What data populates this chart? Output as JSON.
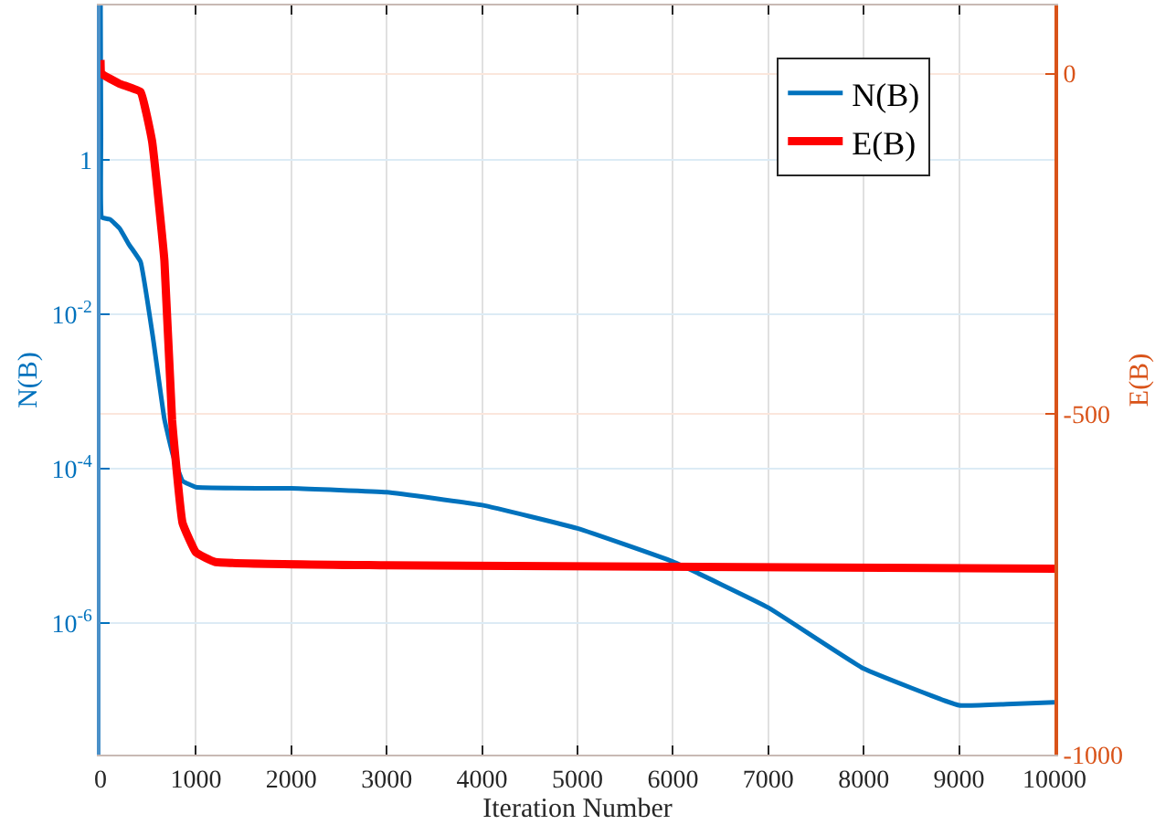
{
  "chart_data": {
    "type": "line",
    "xlabel": "Iteration Number",
    "ylabel": "N(B)",
    "y2label": "E(B)",
    "xlim": [
      0,
      10000
    ],
    "xticks": [
      0,
      1000,
      2000,
      3000,
      4000,
      5000,
      6000,
      7000,
      8000,
      9000,
      10000
    ],
    "ylim": [
      2e-08,
      100
    ],
    "yticks": [
      {
        "value": 1e-06,
        "label": "10$^{-6}$"
      },
      {
        "value": 0.0001,
        "label": "10$^{-4}$"
      },
      {
        "value": 0.01,
        "label": "10$^{-2}$"
      },
      1
    ],
    "y2lim": [
      -1000,
      100
    ],
    "y2ticks": [
      -1000,
      -500,
      0
    ],
    "log": "y",
    "grid": true,
    "legend": "top right",
    "series": [
      {
        "name": "N(B)",
        "color": "#0072bd",
        "x": [
          0,
          5,
          15,
          100,
          200,
          300,
          420,
          550,
          670,
          760,
          860,
          1000,
          2000,
          3000,
          4000,
          5000,
          6000,
          7000,
          8000,
          9000,
          9500,
          10000
        ],
        "values": [
          100,
          2,
          0.18,
          0.17,
          0.13,
          0.08,
          0.048,
          0.005,
          0.00044,
          0.00015,
          7e-05,
          5.8e-05,
          5.6e-05,
          5e-05,
          3.4e-05,
          1.7e-05,
          6.3e-06,
          1.6e-06,
          2.6e-07,
          8.7e-08,
          9e-08,
          9.5e-08
        ]
      },
      {
        "name": "E(B)",
        "color": "#ff0000",
        "axis": "y2",
        "x": [
          0,
          10,
          200,
          420,
          540,
          670,
          750,
          860,
          1000,
          1200,
          3000,
          10000
        ],
        "values": [
          20,
          0,
          -15,
          -27,
          -99,
          -275,
          -508,
          -660,
          -703,
          -717,
          -722,
          -727
        ]
      }
    ]
  }
}
